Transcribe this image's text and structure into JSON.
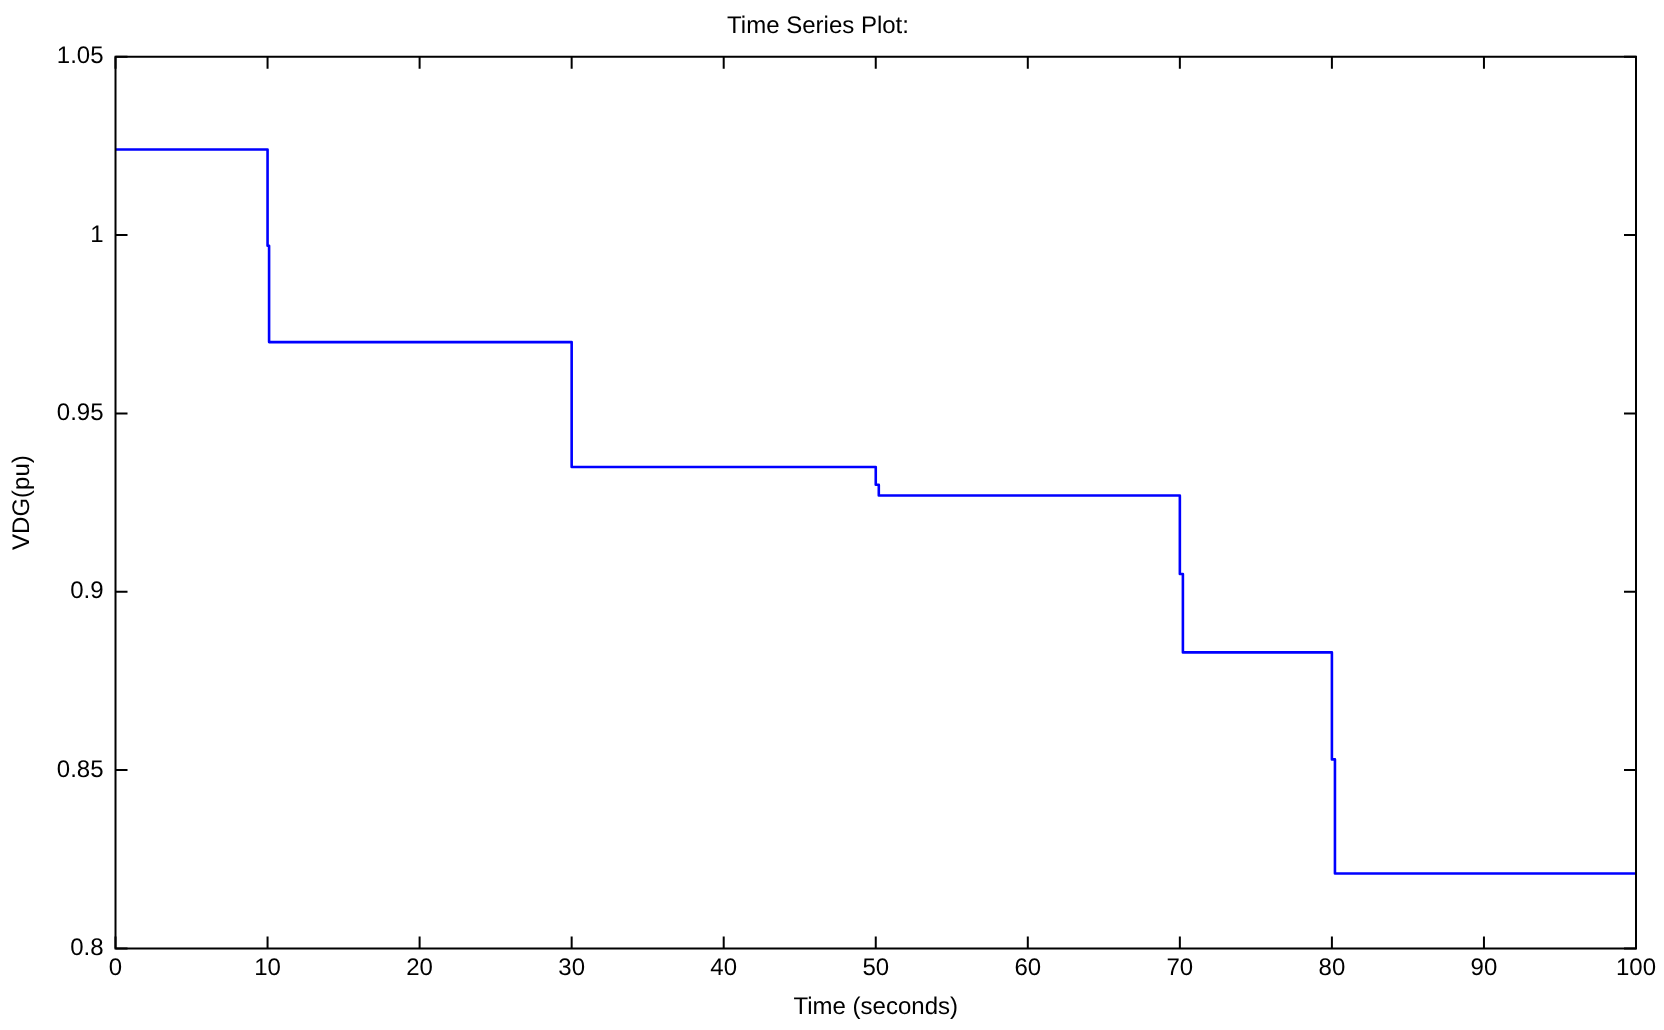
{
  "chart_data": {
    "type": "line",
    "title": "Time Series Plot:",
    "xlabel": "Time (seconds)",
    "ylabel": "VDG(pu)",
    "series": [
      {
        "color": "#0000ff",
        "x": [
          0,
          10,
          10,
          10.1,
          10.1,
          30,
          30,
          50,
          50,
          50.2,
          50.2,
          70,
          70,
          70.2,
          70.2,
          80,
          80,
          80.2,
          80.2,
          100
        ],
        "values": [
          1.024,
          1.024,
          0.997,
          0.997,
          0.97,
          0.97,
          0.935,
          0.935,
          0.93,
          0.93,
          0.927,
          0.927,
          0.905,
          0.905,
          0.883,
          0.883,
          0.853,
          0.853,
          0.821,
          0.821
        ]
      }
    ],
    "xlim": [
      0,
      100
    ],
    "xticks": [
      0,
      10,
      20,
      30,
      40,
      50,
      60,
      70,
      80,
      90,
      100
    ],
    "ylim": [
      0.8,
      1.05
    ],
    "yticks": [
      0.8,
      0.85,
      0.9,
      0.95,
      1,
      1.05
    ],
    "grid": false,
    "legend": false,
    "marker": "none",
    "line_style": "solid"
  }
}
